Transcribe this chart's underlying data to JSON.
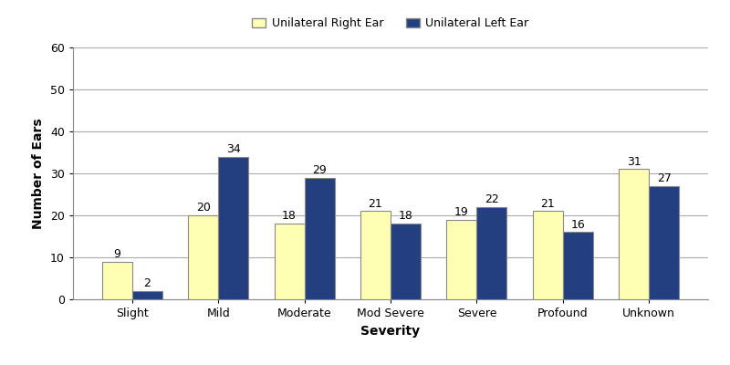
{
  "categories": [
    "Slight",
    "Mild",
    "Moderate",
    "Mod Severe",
    "Severe",
    "Profound",
    "Unknown"
  ],
  "right_ear": [
    9,
    20,
    18,
    21,
    19,
    21,
    31
  ],
  "left_ear": [
    2,
    34,
    29,
    18,
    22,
    16,
    27
  ],
  "right_color": "#FFFFB3",
  "left_color": "#243F80",
  "xlabel": "Severity",
  "ylabel": "Number of Ears",
  "ylim": [
    0,
    60
  ],
  "yticks": [
    0,
    10,
    20,
    30,
    40,
    50,
    60
  ],
  "legend_right": "Unilateral Right Ear",
  "legend_left": "Unilateral Left Ear",
  "bar_width": 0.35,
  "figsize": [
    8.0,
    4.0
  ],
  "dpi": 100,
  "background_color": "#ffffff",
  "grid_color": "#aaaaaa",
  "label_fontsize": 10,
  "tick_fontsize": 9,
  "annotation_fontsize": 9,
  "edge_color": "#888888"
}
